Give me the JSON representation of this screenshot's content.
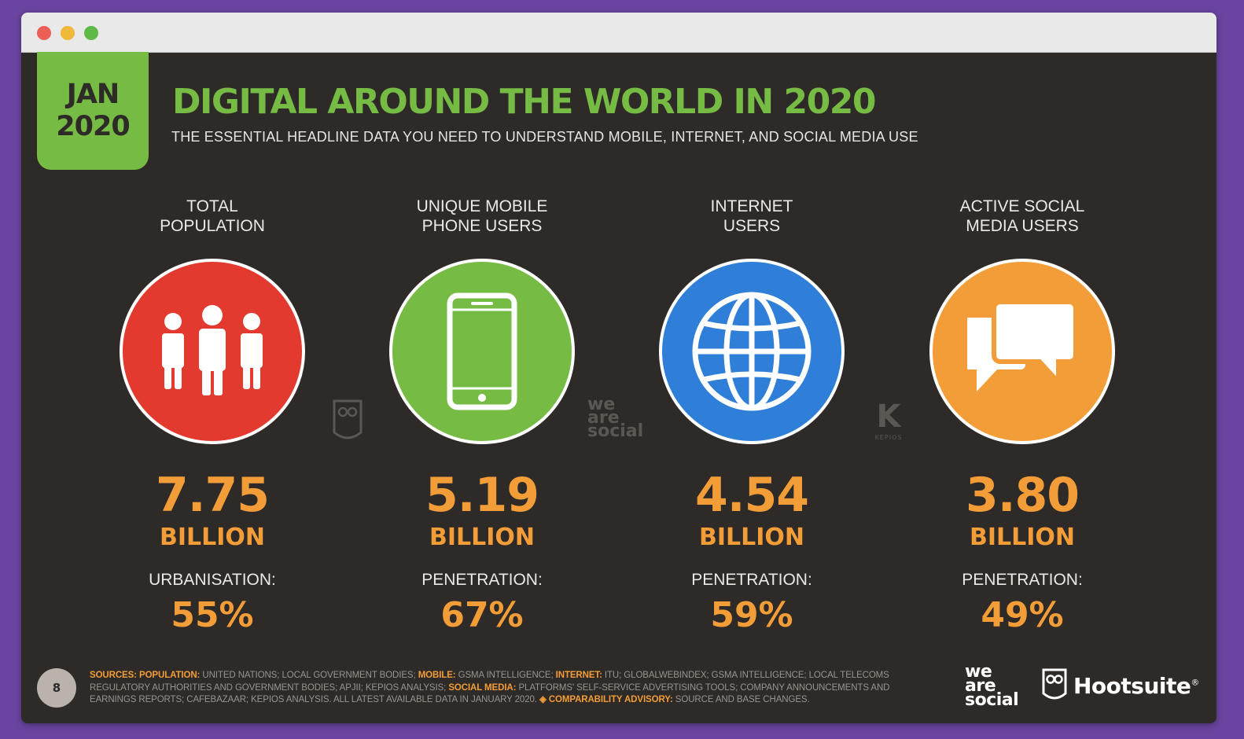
{
  "badge": {
    "month": "JAN",
    "year": "2020"
  },
  "header": {
    "title": "DIGITAL AROUND THE WORLD IN 2020",
    "subtitle": "THE ESSENTIAL HEADLINE DATA YOU NEED TO UNDERSTAND MOBILE, INTERNET, AND SOCIAL MEDIA USE"
  },
  "stats": [
    {
      "label": "TOTAL\nPOPULATION",
      "value": "7.75",
      "unit": "BILLION",
      "metric_label": "URBANISATION:",
      "metric_value": "55%",
      "color": "#e23a2e",
      "icon": "people-icon"
    },
    {
      "label": "UNIQUE MOBILE\nPHONE USERS",
      "value": "5.19",
      "unit": "BILLION",
      "metric_label": "PENETRATION:",
      "metric_value": "67%",
      "color": "#76bb43",
      "icon": "mobile-phone-icon"
    },
    {
      "label": "INTERNET\nUSERS",
      "value": "4.54",
      "unit": "BILLION",
      "metric_label": "PENETRATION:",
      "metric_value": "59%",
      "color": "#2f7fd9",
      "icon": "globe-icon"
    },
    {
      "label": "ACTIVE SOCIAL\nMEDIA USERS",
      "value": "3.80",
      "unit": "BILLION",
      "metric_label": "PENETRATION:",
      "metric_value": "49%",
      "color": "#f29d38",
      "icon": "chat-bubbles-icon"
    }
  ],
  "watermarks": {
    "we_are_social_1": "we",
    "we_are_social_2": "are",
    "we_are_social_3": "social",
    "kepios_mark": "K",
    "kepios_text": "KEPIOS"
  },
  "footer": {
    "page_number": "8",
    "sources": {
      "s1": "SOURCES:",
      "s2": " ",
      "s3": "POPULATION:",
      "s4": " UNITED NATIONS; LOCAL GOVERNMENT BODIES; ",
      "s5": "MOBILE:",
      "s6": " GSMA INTELLIGENCE; ",
      "s7": "INTERNET:",
      "s8": " ITU; GLOBALWEBINDEX; GSMA INTELLIGENCE; LOCAL TELECOMS REGULATORY AUTHORITIES AND GOVERNMENT BODIES; APJII; KEPIOS ANALYSIS; ",
      "s9": "SOCIAL MEDIA:",
      "s10": " PLATFORMS' SELF-SERVICE ADVERTISING TOOLS; COMPANY ANNOUNCEMENTS AND EARNINGS REPORTS; CAFEBAZAAR; KEPIOS ANALYSIS. ALL LATEST AVAILABLE DATA IN JANUARY 2020. ",
      "s11": "◈ COMPARABILITY ADVISORY:",
      "s12": " SOURCE AND BASE CHANGES."
    },
    "brand_was_1": "we",
    "brand_was_2": "are",
    "brand_was_3": "social",
    "brand_hootsuite": "Hootsuite",
    "brand_hootsuite_mark": "®"
  }
}
